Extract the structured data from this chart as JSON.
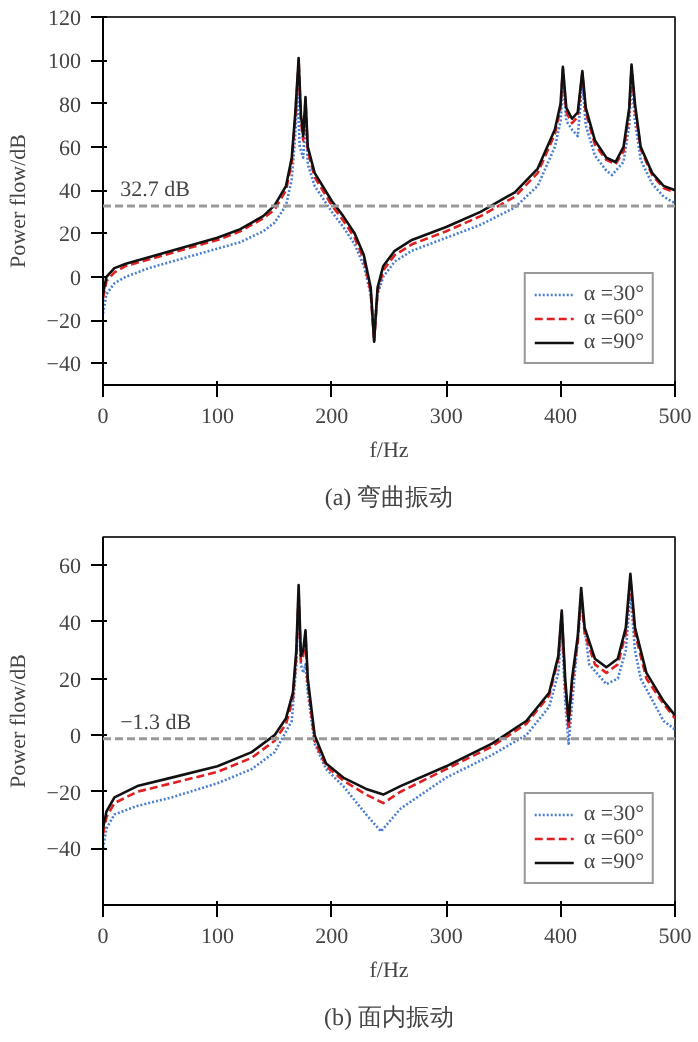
{
  "chart_data": [
    {
      "type": "line",
      "xlabel": "f/Hz",
      "ylabel": "Power flow/dB",
      "xlim": [
        0,
        500
      ],
      "ylim": [
        -50,
        120
      ],
      "xticks": [
        0,
        100,
        200,
        300,
        400,
        500
      ],
      "yticks": [
        -40,
        -20,
        0,
        20,
        40,
        60,
        80,
        100,
        120
      ],
      "grid": false,
      "legend": "bottom right",
      "ref_lines": [
        {
          "axis": "y",
          "value": 32.7,
          "label": "32.7 dB",
          "color": "#999999",
          "line_style": "dashed"
        }
      ],
      "annotations": [
        "(a) 弯曲振动"
      ],
      "series": [
        {
          "name": "α =30°",
          "color": "#4a7fd4",
          "line_style": "dotted",
          "x": [
            0,
            3,
            10,
            20,
            40,
            60,
            80,
            100,
            120,
            140,
            150,
            160,
            165,
            168,
            170,
            172,
            175,
            177,
            179,
            185,
            200,
            210,
            220,
            228,
            234,
            237,
            240,
            245,
            255,
            270,
            300,
            330,
            360,
            380,
            395,
            400,
            402,
            405,
            410,
            415,
            419,
            422,
            430,
            440,
            445,
            455,
            460,
            462,
            465,
            470,
            480,
            490,
            500
          ],
          "values": [
            -17,
            -8,
            -3,
            0,
            4,
            7,
            10,
            13,
            16,
            21,
            25,
            33,
            45,
            65,
            85,
            60,
            55,
            75,
            52,
            42,
            30,
            23,
            15,
            5,
            -8,
            -25,
            -8,
            0,
            7,
            12,
            18,
            24,
            32,
            42,
            60,
            72,
            90,
            72,
            68,
            65,
            90,
            70,
            56,
            49,
            47,
            53,
            70,
            92,
            72,
            54,
            43,
            37,
            34
          ]
        },
        {
          "name": "α =60°",
          "color": "#e02020",
          "line_style": "dashed",
          "x": [
            0,
            3,
            10,
            20,
            40,
            60,
            80,
            100,
            120,
            140,
            150,
            160,
            165,
            168,
            170,
            171,
            173,
            175,
            177,
            179,
            185,
            200,
            210,
            220,
            228,
            234,
            237,
            240,
            245,
            255,
            270,
            300,
            330,
            360,
            380,
            395,
            400,
            402,
            405,
            410,
            415,
            419,
            422,
            430,
            440,
            448,
            455,
            460,
            462,
            465,
            470,
            480,
            490,
            500
          ],
          "values": [
            -10,
            -2,
            2,
            5,
            8,
            11,
            14,
            17,
            21,
            27,
            31,
            40,
            53,
            73,
            90,
            100,
            72,
            63,
            81,
            58,
            46,
            33,
            26,
            18,
            8,
            -7,
            -30,
            -7,
            3,
            10,
            15,
            21,
            28,
            37,
            48,
            66,
            78,
            96,
            76,
            71,
            74,
            94,
            76,
            61,
            54,
            52,
            58,
            76,
            97,
            78,
            59,
            47,
            41,
            39
          ]
        },
        {
          "name": "α =90°",
          "color": "#111111",
          "line_style": "solid",
          "x": [
            0,
            3,
            10,
            20,
            40,
            60,
            80,
            100,
            120,
            140,
            150,
            160,
            165,
            168,
            170,
            171,
            173,
            175,
            177,
            179,
            185,
            200,
            210,
            220,
            228,
            234,
            237,
            240,
            245,
            255,
            270,
            300,
            330,
            360,
            380,
            395,
            400,
            402,
            405,
            410,
            415,
            419,
            422,
            430,
            440,
            448,
            455,
            460,
            462,
            465,
            470,
            480,
            490,
            500
          ],
          "values": [
            -8,
            0,
            4,
            6,
            9,
            12,
            15,
            18,
            22,
            28,
            33,
            42,
            55,
            75,
            92,
            101,
            75,
            65,
            83,
            60,
            48,
            35,
            28,
            20,
            10,
            -5,
            -30,
            -5,
            5,
            12,
            17,
            23,
            30,
            39,
            50,
            68,
            80,
            97,
            78,
            73,
            76,
            95,
            78,
            63,
            55,
            53,
            60,
            78,
            98,
            80,
            60,
            48,
            42,
            40
          ]
        }
      ]
    },
    {
      "type": "line",
      "xlabel": "f/Hz",
      "ylabel": "Power flow/dB",
      "xlim": [
        0,
        500
      ],
      "ylim": [
        -60,
        70
      ],
      "xticks": [
        0,
        100,
        200,
        300,
        400,
        500
      ],
      "yticks": [
        -40,
        -20,
        0,
        20,
        40,
        60
      ],
      "grid": false,
      "legend": "bottom right",
      "ref_lines": [
        {
          "axis": "y",
          "value": -1.3,
          "label": "−1.3 dB",
          "color": "#999999",
          "line_style": "dashed"
        }
      ],
      "annotations": [
        "(b) 面内振动"
      ],
      "series": [
        {
          "name": "α =30°",
          "color": "#4a7fd4",
          "line_style": "dotted",
          "x": [
            0,
            3,
            10,
            30,
            60,
            100,
            130,
            150,
            165,
            169,
            171,
            173,
            175,
            177,
            179,
            185,
            195,
            210,
            230,
            243,
            260,
            300,
            340,
            370,
            390,
            398,
            401,
            404,
            407,
            412,
            418,
            425,
            440,
            450,
            457,
            461,
            465,
            470,
            490,
            500
          ],
          "values": [
            -40,
            -33,
            -28,
            -25,
            -22,
            -17,
            -12,
            -6,
            5,
            25,
            47,
            25,
            22,
            25,
            15,
            -3,
            -12,
            -18,
            -28,
            -34,
            -26,
            -15,
            -7,
            0,
            10,
            22,
            38,
            12,
            -3,
            20,
            47,
            25,
            18,
            20,
            30,
            50,
            30,
            20,
            5,
            2
          ]
        },
        {
          "name": "α =60°",
          "color": "#e02020",
          "line_style": "dashed",
          "x": [
            0,
            3,
            10,
            30,
            60,
            100,
            130,
            150,
            160,
            166,
            169,
            171,
            173,
            175,
            177,
            179,
            185,
            195,
            210,
            230,
            245,
            260,
            300,
            340,
            370,
            390,
            398,
            401,
            404,
            407,
            410,
            415,
            418,
            421,
            430,
            440,
            450,
            457,
            461,
            465,
            475,
            490,
            500
          ],
          "values": [
            -35,
            -29,
            -24,
            -20,
            -17,
            -13,
            -8,
            -2,
            4,
            13,
            28,
            50,
            26,
            28,
            35,
            18,
            -2,
            -11,
            -16,
            -21,
            -24,
            -20,
            -12,
            -4,
            4,
            14,
            27,
            43,
            18,
            2,
            18,
            33,
            50,
            36,
            25,
            22,
            25,
            36,
            55,
            36,
            20,
            11,
            6
          ]
        },
        {
          "name": "α =90°",
          "color": "#111111",
          "line_style": "solid",
          "x": [
            0,
            3,
            10,
            30,
            60,
            100,
            130,
            150,
            160,
            166,
            169,
            171,
            173,
            175,
            177,
            179,
            185,
            195,
            210,
            230,
            245,
            260,
            300,
            340,
            370,
            390,
            398,
            401,
            404,
            407,
            410,
            415,
            418,
            421,
            430,
            440,
            450,
            457,
            461,
            465,
            475,
            490,
            500
          ],
          "values": [
            -33,
            -27,
            -22,
            -18,
            -15,
            -11,
            -6,
            0,
            6,
            15,
            30,
            53,
            28,
            30,
            37,
            20,
            0,
            -10,
            -15,
            -19,
            -21,
            -18,
            -11,
            -3,
            5,
            15,
            28,
            44,
            20,
            5,
            20,
            35,
            52,
            38,
            27,
            24,
            27,
            38,
            57,
            38,
            22,
            12,
            7
          ]
        }
      ]
    }
  ]
}
